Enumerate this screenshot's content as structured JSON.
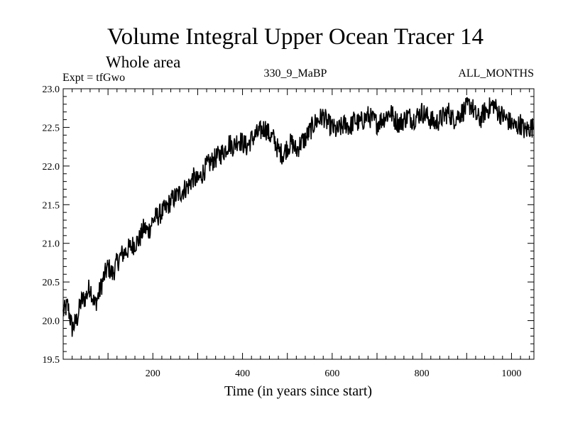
{
  "chart_data": {
    "type": "line",
    "title": "Volume Integral Upper Ocean Tracer 14",
    "subtitle": "Whole area",
    "experiment_label": "Expt = tfGwo",
    "run_label": "330_9_MaBP",
    "months_label": "ALL_MONTHS",
    "xlabel": "Time (in years since start)",
    "ylabel": "",
    "xlim": [
      0,
      1050
    ],
    "ylim": [
      19.5,
      23.0
    ],
    "x_ticks": [
      200,
      400,
      600,
      800,
      1000
    ],
    "y_ticks": [
      "19.5",
      "20.0",
      "20.5",
      "21.0",
      "21.5",
      "22.0",
      "22.5",
      "23.0"
    ],
    "series": [
      {
        "name": "Tracer 14",
        "x_step": 10,
        "x_start": 0,
        "values": [
          20.1,
          20.2,
          19.9,
          20.0,
          20.25,
          20.3,
          20.45,
          20.2,
          20.35,
          20.55,
          20.7,
          20.6,
          20.75,
          20.85,
          20.9,
          20.95,
          21.0,
          21.05,
          21.2,
          21.15,
          21.3,
          21.35,
          21.4,
          21.45,
          21.55,
          21.6,
          21.65,
          21.7,
          21.75,
          21.85,
          21.8,
          21.9,
          22.0,
          22.05,
          22.1,
          22.15,
          22.2,
          22.3,
          22.25,
          22.35,
          22.3,
          22.25,
          22.35,
          22.4,
          22.45,
          22.5,
          22.4,
          22.35,
          22.2,
          22.15,
          22.25,
          22.3,
          22.2,
          22.3,
          22.35,
          22.45,
          22.55,
          22.6,
          22.65,
          22.55,
          22.5,
          22.45,
          22.5,
          22.55,
          22.5,
          22.6,
          22.55,
          22.6,
          22.65,
          22.6,
          22.55,
          22.6,
          22.65,
          22.7,
          22.6,
          22.55,
          22.6,
          22.65,
          22.6,
          22.65,
          22.7,
          22.65,
          22.6,
          22.55,
          22.6,
          22.65,
          22.7,
          22.6,
          22.65,
          22.7,
          22.75,
          22.8,
          22.65,
          22.6,
          22.7,
          22.75,
          22.8,
          22.7,
          22.65,
          22.6,
          22.55,
          22.5,
          22.55,
          22.45,
          22.5,
          22.5
        ]
      }
    ],
    "grid": false,
    "color": "#000000"
  }
}
